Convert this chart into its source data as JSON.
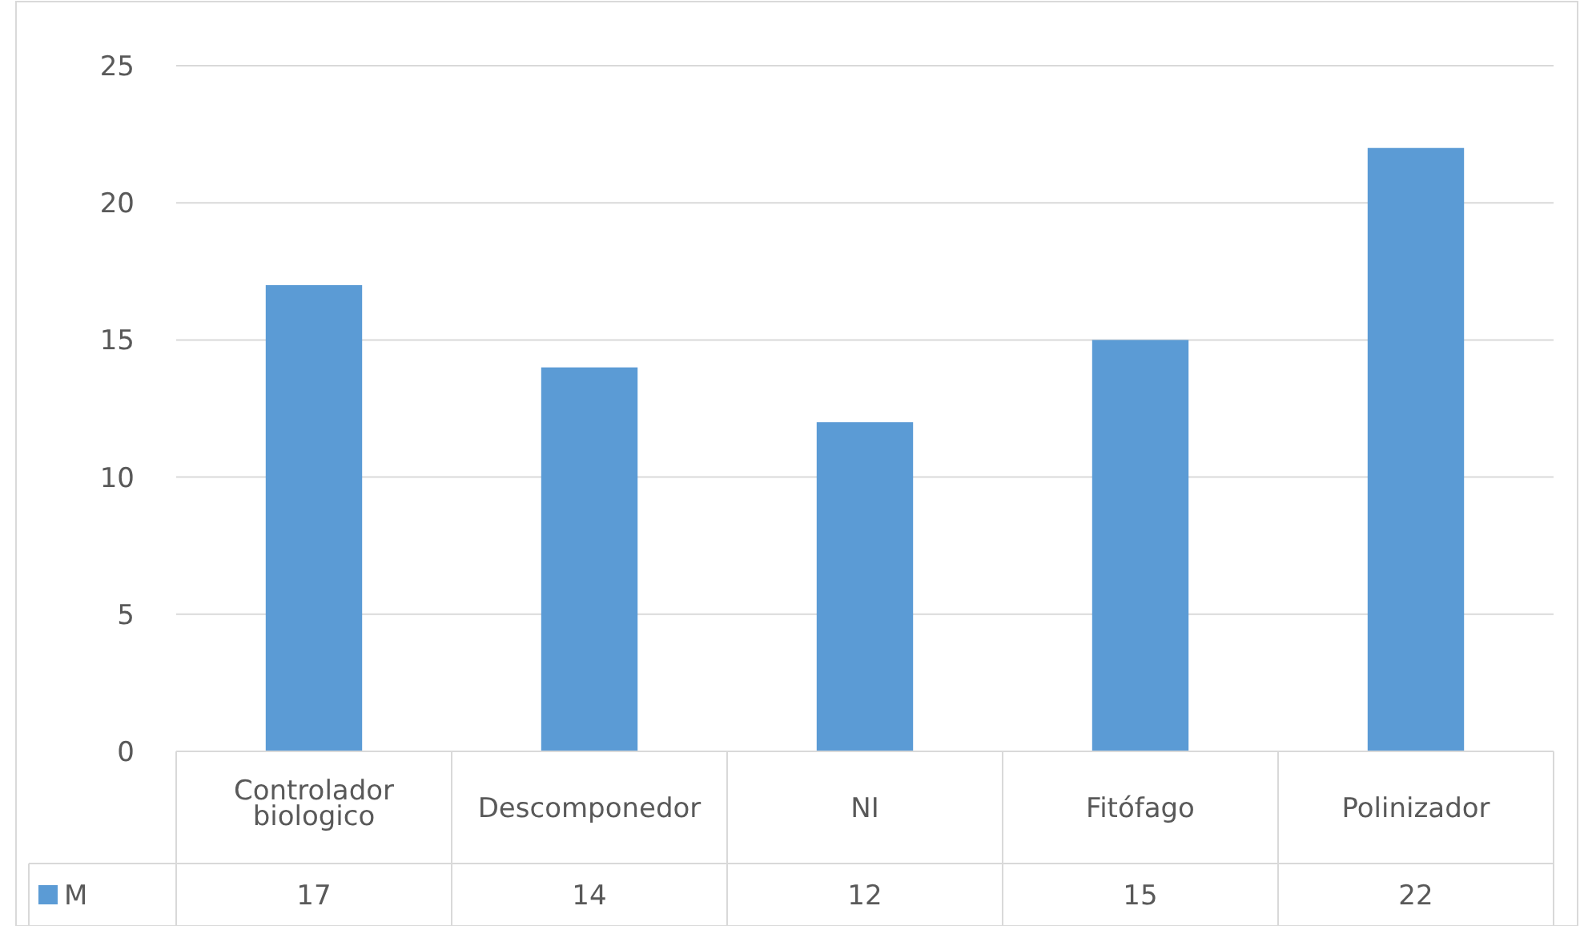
{
  "chart_data": {
    "type": "bar",
    "categories": [
      "Controlador biologico",
      "Descomponedor",
      "NI",
      "Fitófago",
      "Polinizador"
    ],
    "series": [
      {
        "name": "M",
        "color": "#5b9bd5",
        "values": [
          17,
          14,
          12,
          15,
          22
        ]
      }
    ],
    "ylim": [
      0,
      25
    ],
    "yticks": [
      0,
      5,
      10,
      15,
      20,
      25
    ],
    "grid": "y",
    "legend": "bottom",
    "data_labels": true
  }
}
